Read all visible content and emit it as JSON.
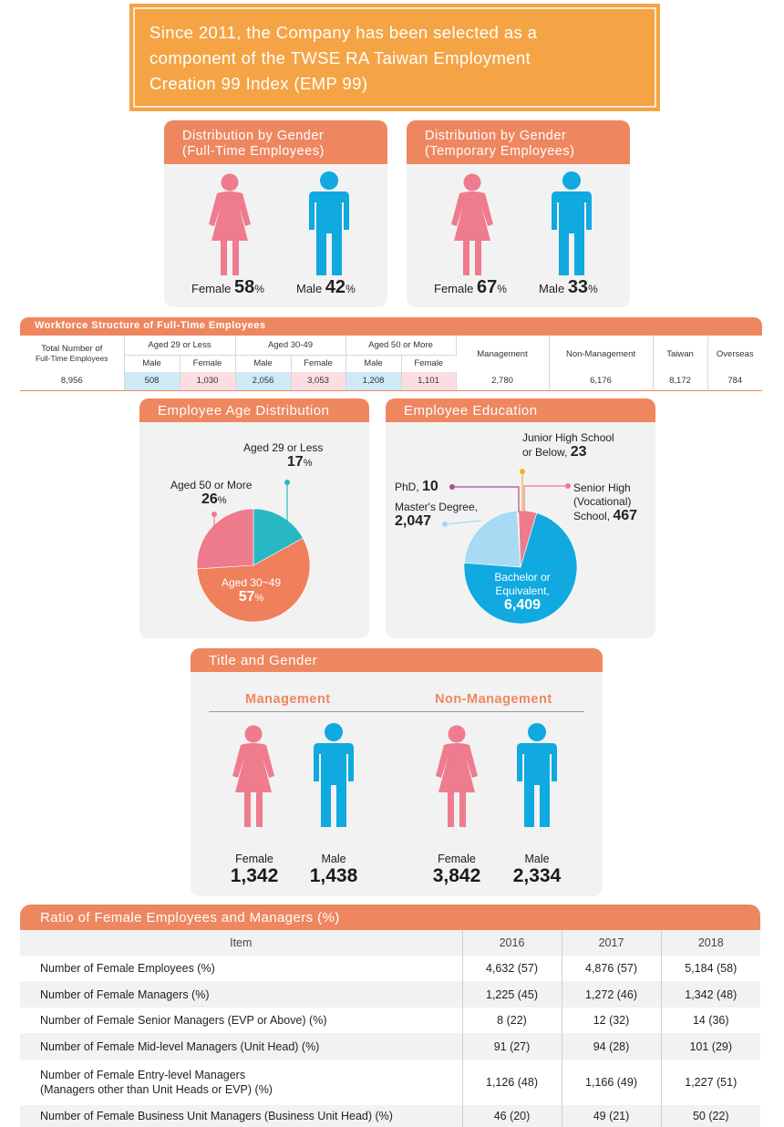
{
  "banner": {
    "lines": [
      "Since 2011, the Company has been selected as a",
      "component of the TWSE RA Taiwan Employment",
      "Creation 99 Index (EMP 99)"
    ]
  },
  "colors": {
    "accent": "#ee8760",
    "banner": "#f5a445",
    "female": "#ef7b8e",
    "male": "#10a9e0",
    "aged_young": "#27b8c4",
    "light_blue": "#a8daf4",
    "purple": "#a7509b",
    "yellow": "#f0b429"
  },
  "gender_fulltime": {
    "title_lines": [
      "Distribution by Gender",
      "(Full-Time Employees)"
    ],
    "female_label": "Female",
    "female_value": "58",
    "male_label": "Male",
    "male_value": "42",
    "unit": "%"
  },
  "gender_temporary": {
    "title_lines": [
      "Distribution by Gender",
      "(Temporary Employees)"
    ],
    "female_label": "Female",
    "female_value": "67",
    "male_label": "Male",
    "male_value": "33",
    "unit": "%"
  },
  "workforce": {
    "title": "Workforce Structure of Full-Time Employees",
    "total_label_lines": [
      "Total Number of",
      "Full-Time Employees"
    ],
    "groups": [
      "Aged 29 or Less",
      "Aged 30-49",
      "Aged 50 or More"
    ],
    "sub_labels": [
      "Male",
      "Female"
    ],
    "other_headers": [
      "Management",
      "Non-Management",
      "Taiwan",
      "Overseas"
    ],
    "values": [
      "8,956",
      "508",
      "1,030",
      "2,056",
      "3,053",
      "1,208",
      "1,101",
      "2,780",
      "6,176",
      "8,172",
      "784"
    ]
  },
  "chart_data": [
    {
      "type": "pie",
      "title": "Employee Age Distribution",
      "labels": [
        "Aged 29 or Less",
        "Aged 30~49",
        "Aged 50 or More"
      ],
      "values": [
        17,
        57,
        26
      ],
      "unit": "%",
      "colors": [
        "#27b8c4",
        "#f07f5c",
        "#ee7b8d"
      ]
    },
    {
      "type": "pie",
      "title": "Employee Education",
      "labels": [
        "Senior High (Vocational) School",
        "Bachelor or Equivalent",
        "Master's Degree",
        "PhD",
        "Junior High School or Below"
      ],
      "values": [
        467,
        6409,
        2047,
        10,
        23
      ],
      "colors": [
        "#ee7b8d",
        "#10a9e0",
        "#a8daf4",
        "#a7509b",
        "#f0b429"
      ]
    }
  ],
  "age_labels": {
    "young_lines": [
      "Aged 29 or Less"
    ],
    "young_value": "17",
    "old_lines": [
      "Aged 50 or More"
    ],
    "old_value": "26",
    "mid_lines": [
      "Aged 30~49"
    ],
    "mid_value": "57",
    "unit": "%"
  },
  "edu_labels": {
    "junior_lines": [
      "Junior High School",
      "or Below,"
    ],
    "junior_value": "23",
    "phd_label": "PhD,",
    "phd_value": "10",
    "master_line": "Master's Degree,",
    "master_value": "2,047",
    "senior_lines": [
      "Senior High",
      "(Vocational)",
      "School,"
    ],
    "senior_value": "467",
    "bachelor_lines": [
      "Bachelor or",
      "Equivalent,"
    ],
    "bachelor_value": "6,409"
  },
  "title_gender": {
    "title": "Title and Gender",
    "management": "Management",
    "non_management": "Non-Management",
    "female_label": "Female",
    "male_label": "Male",
    "mgmt_female": "1,342",
    "mgmt_male": "1,438",
    "nonmgmt_female": "3,842",
    "nonmgmt_male": "2,334"
  },
  "ratio": {
    "title": "Ratio of Female Employees and Managers (%)",
    "item_header": "Item",
    "years": [
      "2016",
      "2017",
      "2018"
    ],
    "rows": [
      {
        "item_lines": [
          "Number of Female Employees (%)"
        ],
        "values": [
          "4,632 (57)",
          "4,876 (57)",
          "5,184 (58)"
        ]
      },
      {
        "item_lines": [
          "Number of Female Managers (%)"
        ],
        "values": [
          "1,225 (45)",
          "1,272 (46)",
          "1,342 (48)"
        ]
      },
      {
        "item_lines": [
          "Number of Female Senior Managers (EVP or Above) (%)"
        ],
        "values": [
          "8 (22)",
          "12 (32)",
          "14 (36)"
        ]
      },
      {
        "item_lines": [
          "Number of Female Mid-level Managers (Unit Head) (%)"
        ],
        "values": [
          "91 (27)",
          "94 (28)",
          "101 (29)"
        ]
      },
      {
        "item_lines": [
          "Number of Female Entry-level Managers",
          "(Managers other than Unit Heads or EVP) (%)"
        ],
        "values": [
          "1,126 (48)",
          "1,166 (49)",
          "1,227 (51)"
        ]
      },
      {
        "item_lines": [
          "Number of Female Business Unit Managers (Business Unit Head) (%)"
        ],
        "values": [
          "46 (20)",
          "49 (21)",
          "50 (22)"
        ]
      }
    ]
  }
}
